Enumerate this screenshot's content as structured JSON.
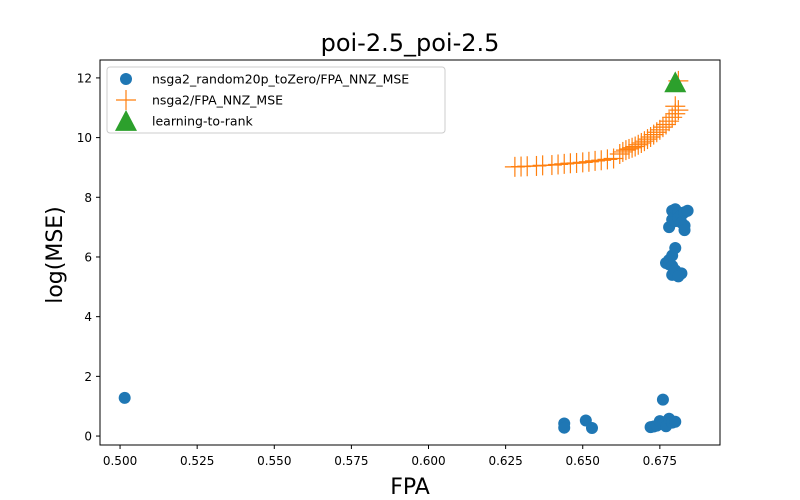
{
  "chart_data": {
    "type": "scatter",
    "title": "poi-2.5_poi-2.5",
    "xlabel": "FPA",
    "ylabel": "log(MSE)",
    "xlim": [
      0.4935,
      0.6945
    ],
    "ylim": [
      -0.3,
      12.6
    ],
    "xticks": [
      "0.500",
      "0.525",
      "0.550",
      "0.575",
      "0.600",
      "0.625",
      "0.650",
      "0.675"
    ],
    "xtick_values": [
      0.5,
      0.525,
      0.55,
      0.575,
      0.6,
      0.625,
      0.65,
      0.675
    ],
    "yticks": [
      "0",
      "2",
      "4",
      "6",
      "8",
      "10",
      "12"
    ],
    "ytick_values": [
      0,
      2,
      4,
      6,
      8,
      10,
      12
    ],
    "grid": false,
    "legend_placement": "upper-left",
    "colors": {
      "blue": "#1f77b4",
      "orange": "#ff7f0e",
      "green": "#2ca02c"
    },
    "series": [
      {
        "name": "nsga2_random20p_toZero/FPA_NNZ_MSE",
        "marker": "circle",
        "color": "#1f77b4",
        "points": [
          [
            0.5015,
            1.28
          ],
          [
            0.644,
            0.42
          ],
          [
            0.644,
            0.28
          ],
          [
            0.651,
            0.52
          ],
          [
            0.653,
            0.27
          ],
          [
            0.672,
            0.3
          ],
          [
            0.673,
            0.32
          ],
          [
            0.674,
            0.35
          ],
          [
            0.675,
            0.5
          ],
          [
            0.676,
            0.4
          ],
          [
            0.677,
            0.33
          ],
          [
            0.678,
            0.58
          ],
          [
            0.679,
            0.45
          ],
          [
            0.68,
            0.48
          ],
          [
            0.676,
            1.22
          ],
          [
            0.678,
            5.75
          ],
          [
            0.677,
            5.8
          ],
          [
            0.678,
            5.9
          ],
          [
            0.679,
            5.7
          ],
          [
            0.679,
            5.4
          ],
          [
            0.679,
            6.05
          ],
          [
            0.68,
            6.3
          ],
          [
            0.68,
            5.55
          ],
          [
            0.682,
            5.45
          ],
          [
            0.681,
            5.35
          ],
          [
            0.678,
            7.0
          ],
          [
            0.679,
            7.25
          ],
          [
            0.679,
            7.55
          ],
          [
            0.68,
            7.6
          ],
          [
            0.68,
            7.2
          ],
          [
            0.681,
            7.5
          ],
          [
            0.681,
            7.3
          ],
          [
            0.682,
            7.4
          ],
          [
            0.682,
            7.15
          ],
          [
            0.683,
            7.05
          ],
          [
            0.683,
            6.9
          ],
          [
            0.683,
            7.5
          ],
          [
            0.684,
            7.55
          ]
        ]
      },
      {
        "name": "nsga2/FPA_NNZ_MSE",
        "marker": "plus",
        "color": "#ff7f0e",
        "points": [
          [
            0.628,
            9.02
          ],
          [
            0.63,
            9.03
          ],
          [
            0.632,
            9.04
          ],
          [
            0.635,
            9.05
          ],
          [
            0.637,
            9.07
          ],
          [
            0.64,
            9.08
          ],
          [
            0.642,
            9.1
          ],
          [
            0.644,
            9.12
          ],
          [
            0.646,
            9.14
          ],
          [
            0.648,
            9.15
          ],
          [
            0.65,
            9.17
          ],
          [
            0.652,
            9.19
          ],
          [
            0.654,
            9.22
          ],
          [
            0.656,
            9.24
          ],
          [
            0.658,
            9.27
          ],
          [
            0.66,
            9.3
          ],
          [
            0.662,
            9.45
          ],
          [
            0.663,
            9.52
          ],
          [
            0.664,
            9.58
          ],
          [
            0.665,
            9.62
          ],
          [
            0.666,
            9.66
          ],
          [
            0.667,
            9.7
          ],
          [
            0.668,
            9.76
          ],
          [
            0.669,
            9.82
          ],
          [
            0.67,
            9.88
          ],
          [
            0.671,
            9.95
          ],
          [
            0.672,
            10.02
          ],
          [
            0.673,
            10.1
          ],
          [
            0.674,
            10.18
          ],
          [
            0.675,
            10.26
          ],
          [
            0.676,
            10.35
          ],
          [
            0.677,
            10.44
          ],
          [
            0.678,
            10.55
          ],
          [
            0.679,
            10.68
          ],
          [
            0.68,
            10.8
          ],
          [
            0.681,
            10.92
          ],
          [
            0.68,
            11.05
          ],
          [
            0.681,
            11.9
          ]
        ]
      },
      {
        "name": "learning-to-rank",
        "marker": "triangle",
        "color": "#2ca02c",
        "points": [
          [
            0.68,
            11.85
          ]
        ]
      }
    ]
  }
}
